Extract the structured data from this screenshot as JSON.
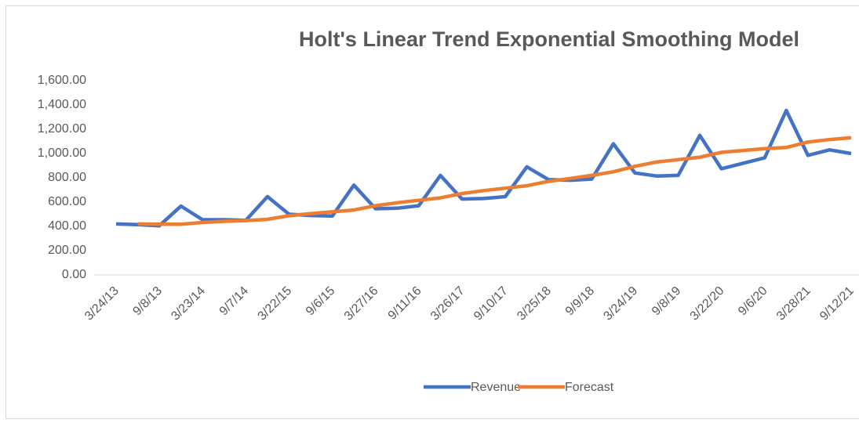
{
  "chart_data": {
    "type": "line",
    "title": "Holt's Linear Trend Exponential Smoothing Model",
    "categories": [
      "3/24/13",
      null,
      "9/8/13",
      null,
      "3/23/14",
      null,
      "9/7/14",
      null,
      "3/22/15",
      null,
      "9/6/15",
      null,
      "3/27/16",
      null,
      "9/11/16",
      null,
      "3/26/17",
      null,
      "9/10/17",
      null,
      "3/25/18",
      null,
      "9/9/18",
      null,
      "3/24/19",
      null,
      "9/8/19",
      null,
      "3/22/20",
      null,
      "9/6/20",
      null,
      "3/28/21",
      null,
      "9/12/21"
    ],
    "series": [
      {
        "name": "Revenue",
        "color": "#4472c4",
        "values": [
          420,
          415,
          405,
          567,
          455,
          455,
          450,
          645,
          500,
          490,
          485,
          740,
          545,
          550,
          570,
          820,
          625,
          630,
          645,
          890,
          785,
          780,
          790,
          1080,
          840,
          815,
          820,
          1150,
          875,
          920,
          965,
          1355,
          985,
          1030,
          1000
        ]
      },
      {
        "name": "Forecast",
        "color": "#ed7d31",
        "values": [
          null,
          420,
          418,
          418,
          432,
          442,
          448,
          458,
          488,
          505,
          520,
          535,
          570,
          595,
          615,
          635,
          670,
          695,
          715,
          735,
          770,
          795,
          820,
          850,
          895,
          930,
          950,
          970,
          1010,
          1025,
          1040,
          1050,
          1095,
          1115,
          1130
        ]
      }
    ],
    "ylim": [
      0,
      1600
    ],
    "yticks": [
      {
        "value": 0,
        "label": "0.00"
      },
      {
        "value": 200,
        "label": "200.00"
      },
      {
        "value": 400,
        "label": "400.00"
      },
      {
        "value": 600,
        "label": "600.00"
      },
      {
        "value": 800,
        "label": "800.00"
      },
      {
        "value": 1000,
        "label": "1,000.00"
      },
      {
        "value": 1200,
        "label": "1,200.00"
      },
      {
        "value": 1400,
        "label": "1,400.00"
      },
      {
        "value": 1600,
        "label": "1,600.00"
      }
    ],
    "grid": false,
    "legend": "bottom"
  }
}
